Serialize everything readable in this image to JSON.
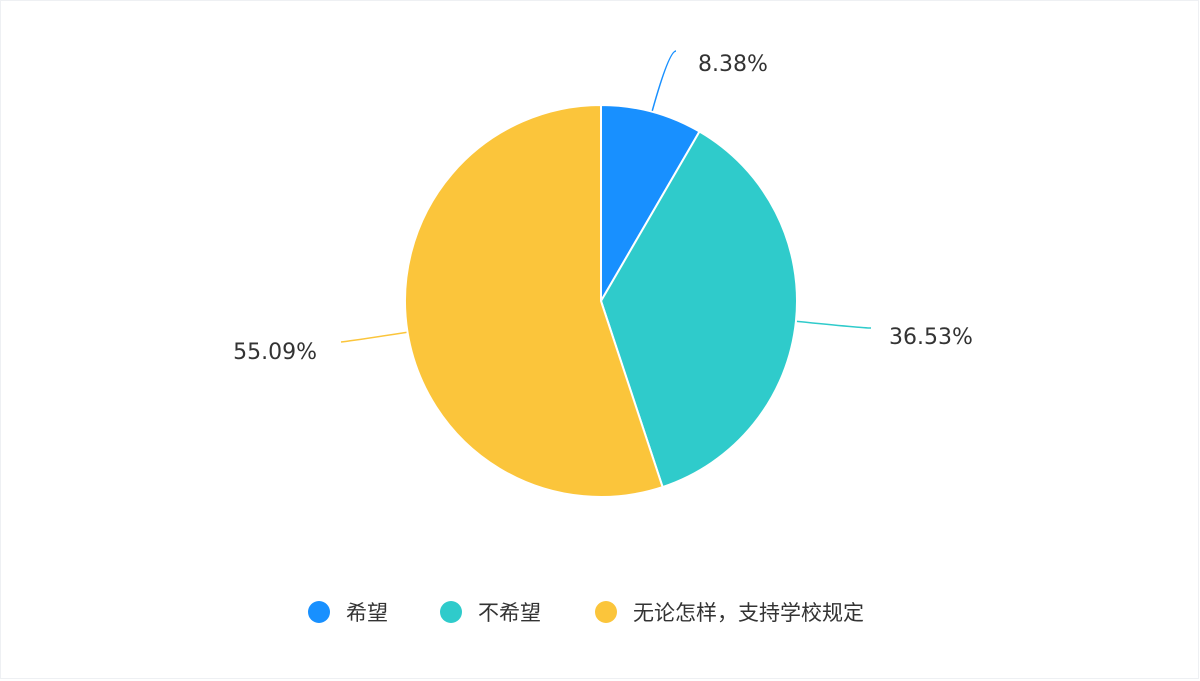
{
  "chart_data": {
    "type": "pie",
    "slices": [
      {
        "name": "希望",
        "value": 8.38,
        "label": "8.38%",
        "color": "#1890ff"
      },
      {
        "name": "不希望",
        "value": 36.53,
        "label": "36.53%",
        "color": "#2fcbcb"
      },
      {
        "name": "无论怎样，支持学校规定",
        "value": 55.09,
        "label": "55.09%",
        "color": "#fbc53b"
      }
    ],
    "start_angle_deg": 0,
    "direction": "clockwise",
    "legend_position": "bottom"
  }
}
